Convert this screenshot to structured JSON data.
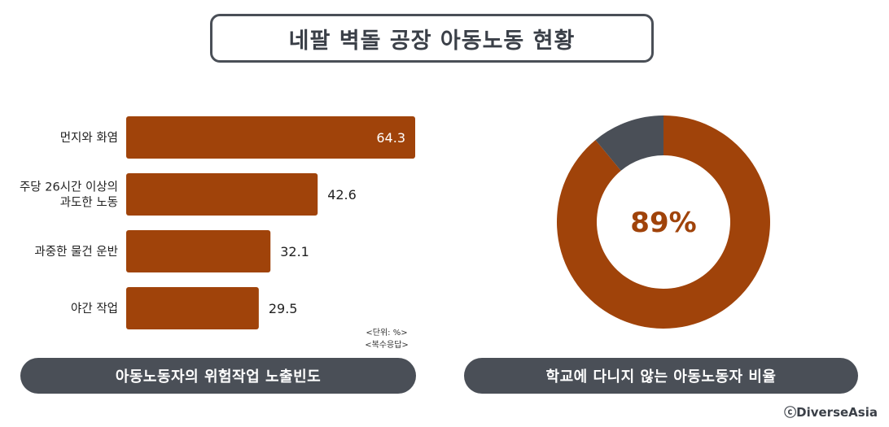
{
  "title": "네팔 벽돌 공장 아동노동 현황",
  "colors": {
    "bar": "#a0430a",
    "donut_main": "#a0430a",
    "donut_rest": "#4a4f57",
    "pill": "#4a4f57"
  },
  "unit_note": [
    "<단위: %>",
    "<복수응답>"
  ],
  "left_caption": "아동노동자의 위험작업 노출빈도",
  "right_caption": "학교에 다니지 않는 아동노동자 비율",
  "credit": "ⓒDiverseAsia",
  "chart_data": [
    {
      "type": "bar",
      "orientation": "horizontal",
      "categories": [
        [
          "먼지와 화염"
        ],
        [
          "주당 26시간 이상의",
          "과도한 노동"
        ],
        [
          "과중한 물건 운반"
        ],
        [
          "야간 작업"
        ]
      ],
      "values": [
        64.3,
        42.6,
        32.1,
        29.5
      ],
      "value_labels": [
        "64.3",
        "42.6",
        "32.1",
        "29.5"
      ]
    },
    {
      "type": "pie",
      "style": "donut",
      "values": [
        89,
        11
      ],
      "center_label": "89%"
    }
  ]
}
